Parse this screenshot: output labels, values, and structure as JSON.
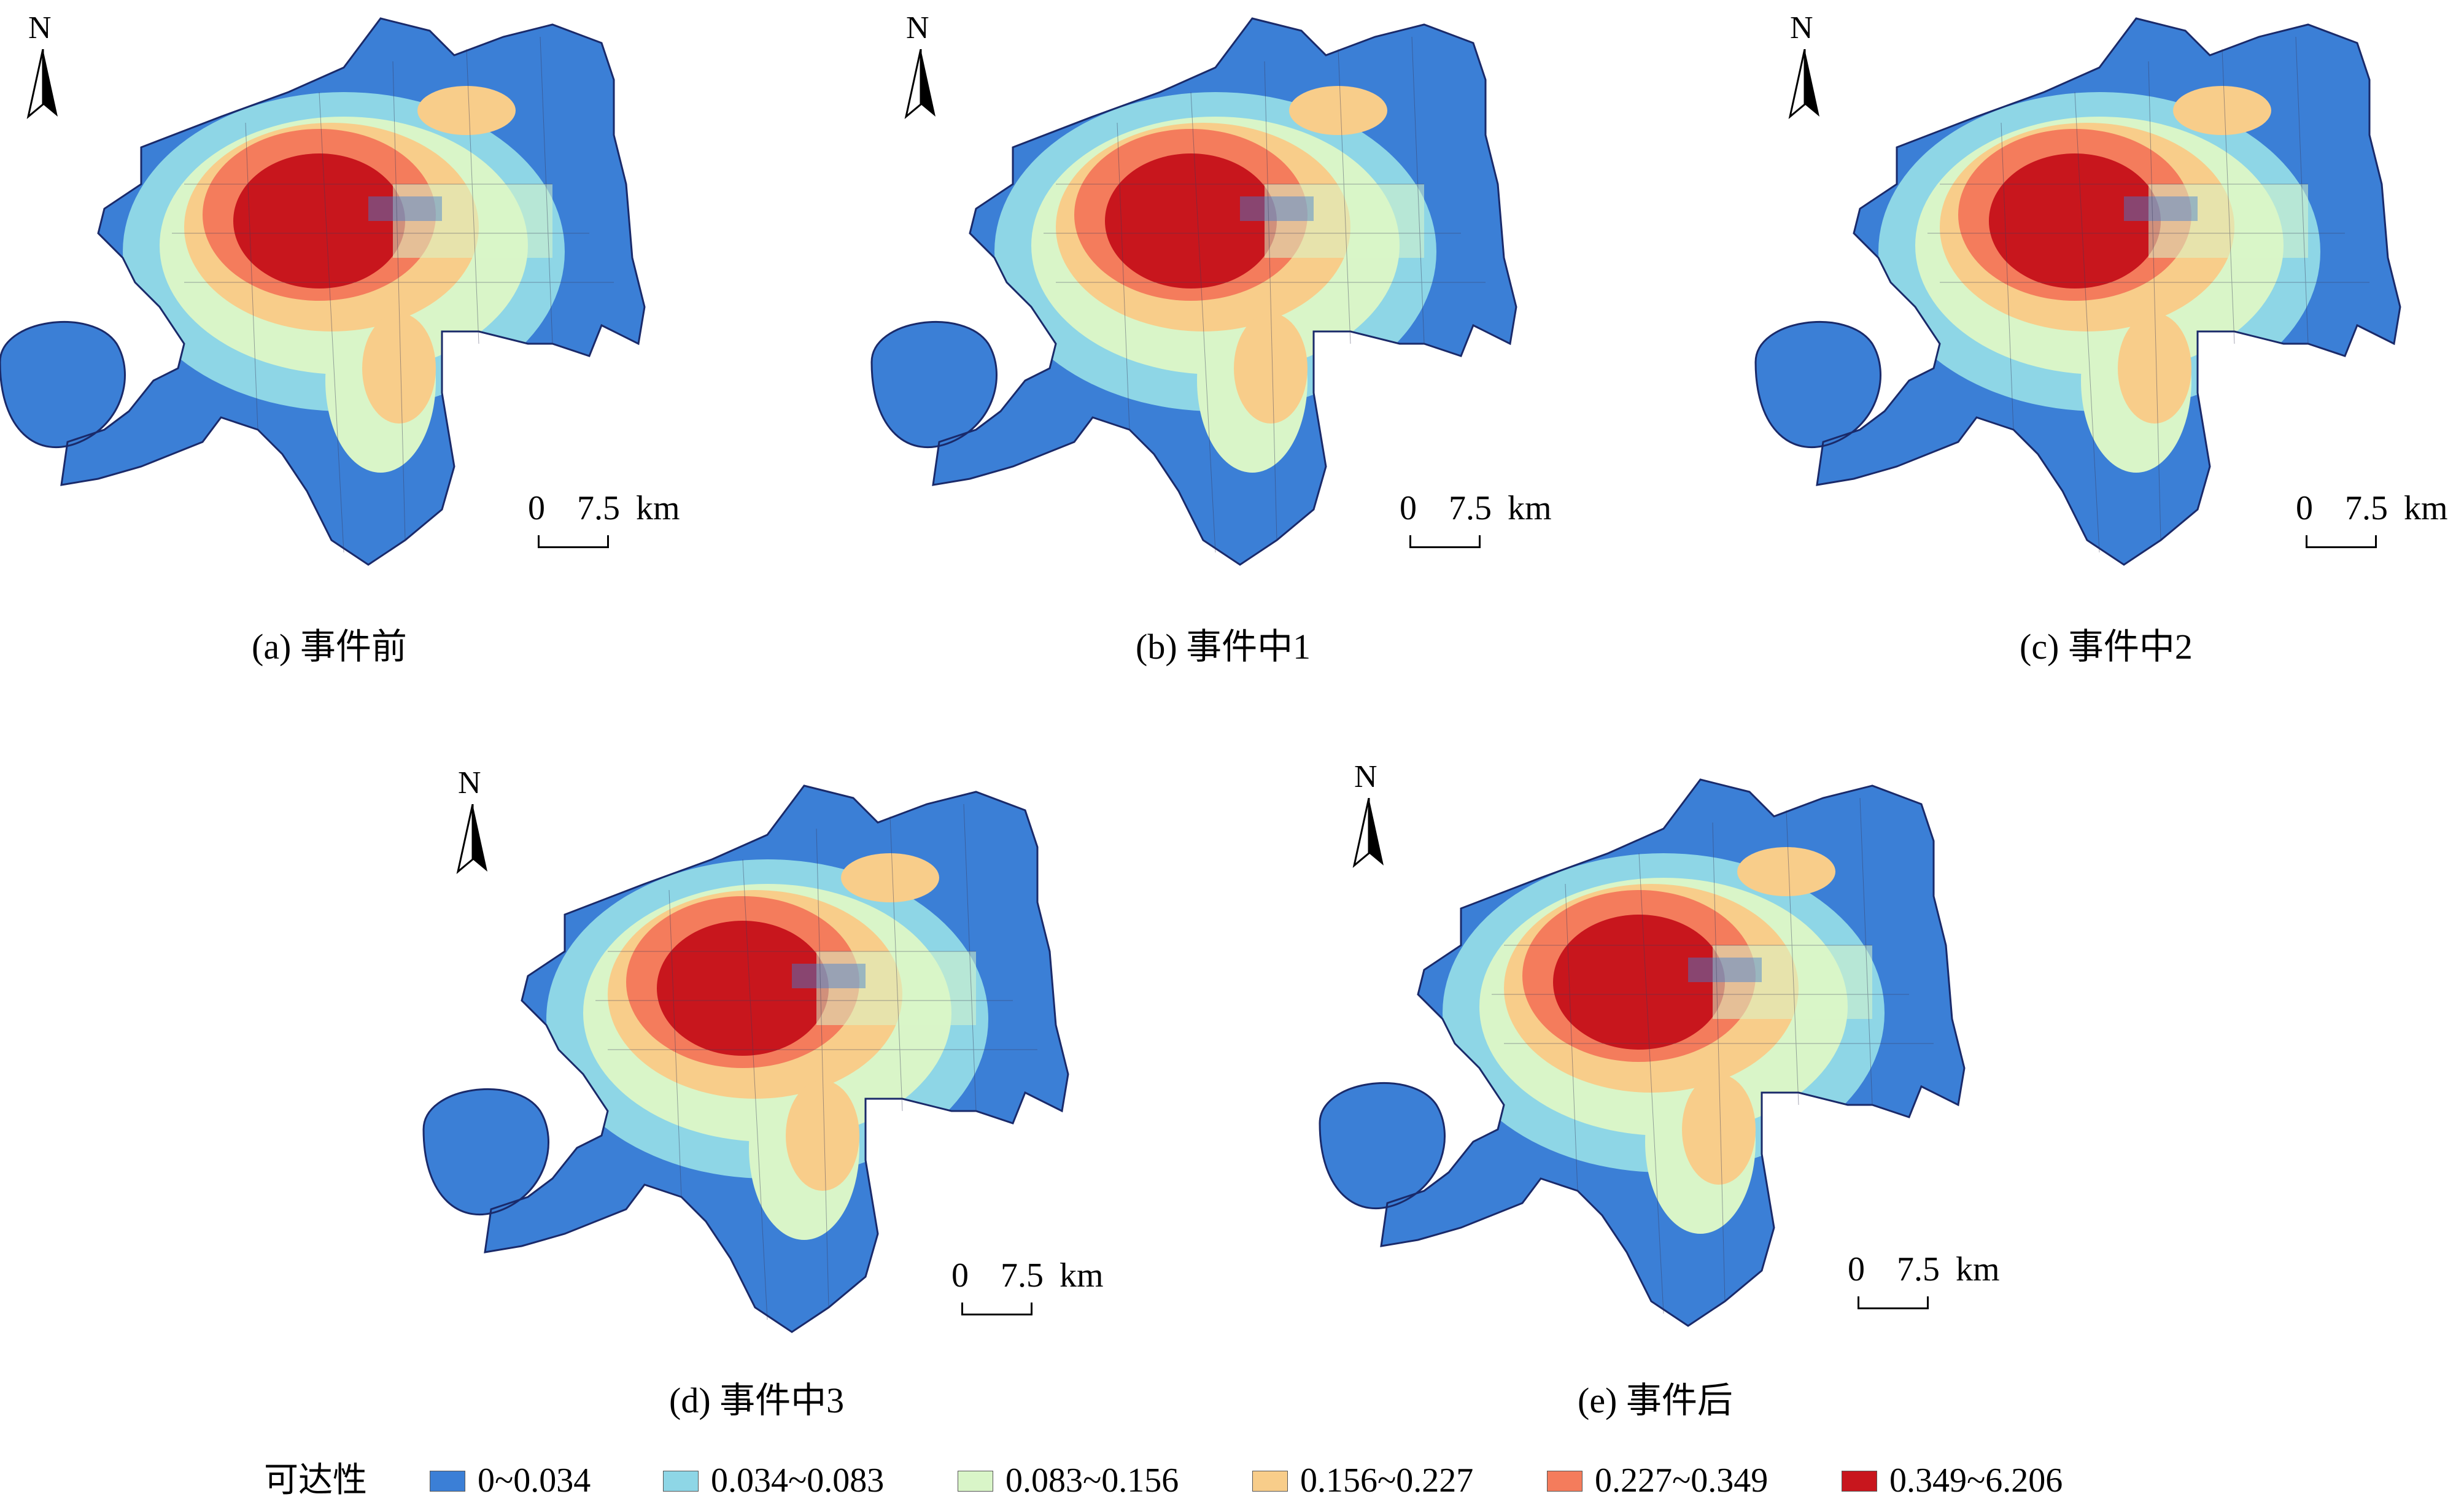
{
  "maps": [
    {
      "id": "a",
      "caption": "(a) 事件前",
      "north_label": "N",
      "scale": {
        "zero": "0",
        "distance": "7.5",
        "unit": "km"
      }
    },
    {
      "id": "b",
      "caption": "(b) 事件中1",
      "north_label": "N",
      "scale": {
        "zero": "0",
        "distance": "7.5",
        "unit": "km"
      }
    },
    {
      "id": "c",
      "caption": "(c) 事件中2",
      "north_label": "N",
      "scale": {
        "zero": "0",
        "distance": "7.5",
        "unit": "km"
      }
    },
    {
      "id": "d",
      "caption": "(d) 事件中3",
      "north_label": "N",
      "scale": {
        "zero": "0",
        "distance": "7.5",
        "unit": "km"
      }
    },
    {
      "id": "e",
      "caption": "(e) 事件后",
      "north_label": "N",
      "scale": {
        "zero": "0",
        "distance": "7.5",
        "unit": "km"
      }
    }
  ],
  "legend": {
    "title": "可达性",
    "classes": [
      {
        "label": "0~0.034",
        "color": "#3b7fd6"
      },
      {
        "label": "0.034~0.083",
        "color": "#8ed6e6"
      },
      {
        "label": "0.083~0.156",
        "color": "#d9f5c8"
      },
      {
        "label": "0.156~0.227",
        "color": "#f8cd8a"
      },
      {
        "label": "0.227~0.349",
        "color": "#f47c5c"
      },
      {
        "label": "0.349~6.206",
        "color": "#c8161d"
      }
    ]
  }
}
